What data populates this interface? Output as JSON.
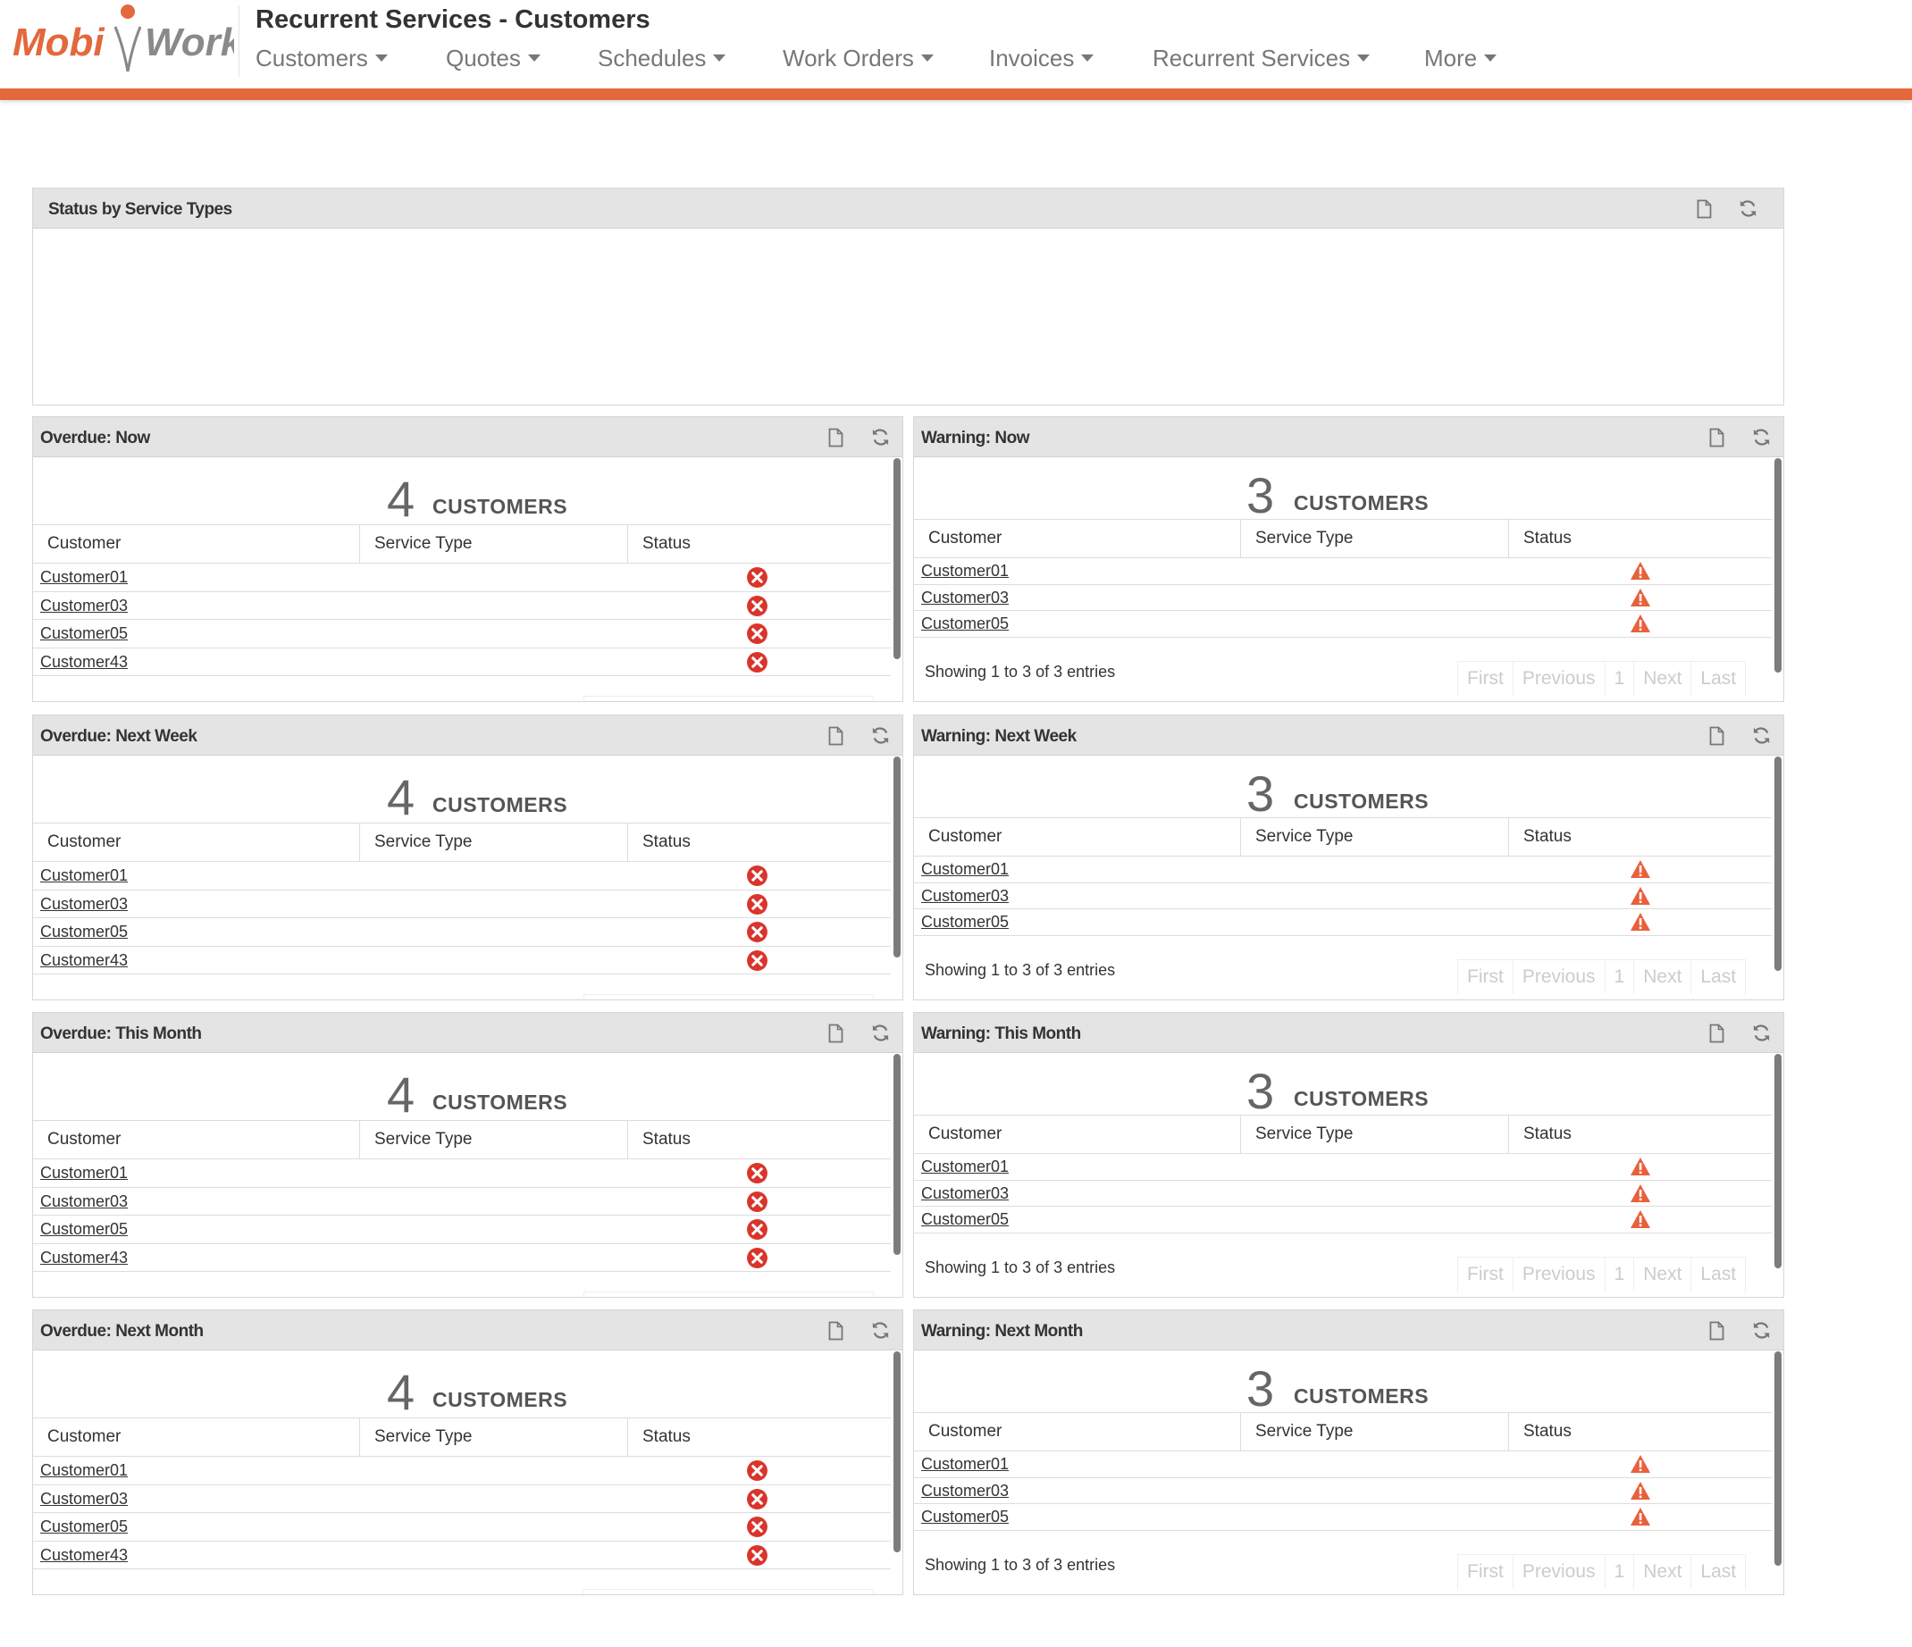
{
  "header": {
    "logo_text_left": "Mobi",
    "logo_text_right": "Work",
    "title": "Recurrent Services - Customers",
    "nav": [
      "Customers",
      "Quotes",
      "Schedules",
      "Work Orders",
      "Invoices",
      "Recurrent Services",
      "More"
    ]
  },
  "colors": {
    "accent": "#e3683c",
    "error": "#d9352c",
    "warning": "#e8603c",
    "panel_header": "#e4e4e4"
  },
  "icons": {
    "panel_actions": [
      "document-icon",
      "refresh-icon"
    ],
    "overdue_status": "error-circle-icon",
    "warning_status": "warning-triangle-icon"
  },
  "status_panel": {
    "title": "Status by Service Types"
  },
  "columns": [
    "Customer",
    "Service Type",
    "Status"
  ],
  "pager": [
    "First",
    "Previous",
    "1",
    "Next",
    "Last"
  ],
  "overdue": [
    {
      "title": "Overdue: Now",
      "count": "4",
      "label": "CUSTOMERS",
      "rows": [
        "Customer01",
        "Customer03",
        "Customer05",
        "Customer43"
      ]
    },
    {
      "title": "Overdue: Next Week",
      "count": "4",
      "label": "CUSTOMERS",
      "rows": [
        "Customer01",
        "Customer03",
        "Customer05",
        "Customer43"
      ]
    },
    {
      "title": "Overdue: This Month",
      "count": "4",
      "label": "CUSTOMERS",
      "rows": [
        "Customer01",
        "Customer03",
        "Customer05",
        "Customer43"
      ]
    },
    {
      "title": "Overdue: Next Month",
      "count": "4",
      "label": "CUSTOMERS",
      "rows": [
        "Customer01",
        "Customer03",
        "Customer05",
        "Customer43"
      ]
    }
  ],
  "warning": [
    {
      "title": "Warning: Now",
      "count": "3",
      "label": "CUSTOMERS",
      "rows": [
        "Customer01",
        "Customer03",
        "Customer05"
      ],
      "info": "Showing 1 to 3 of 3 entries"
    },
    {
      "title": "Warning: Next Week",
      "count": "3",
      "label": "CUSTOMERS",
      "rows": [
        "Customer01",
        "Customer03",
        "Customer05"
      ],
      "info": "Showing 1 to 3 of 3 entries"
    },
    {
      "title": "Warning: This Month",
      "count": "3",
      "label": "CUSTOMERS",
      "rows": [
        "Customer01",
        "Customer03",
        "Customer05"
      ],
      "info": "Showing 1 to 3 of 3 entries"
    },
    {
      "title": "Warning: Next Month",
      "count": "3",
      "label": "CUSTOMERS",
      "rows": [
        "Customer01",
        "Customer03",
        "Customer05"
      ],
      "info": "Showing 1 to 3 of 3 entries"
    }
  ]
}
